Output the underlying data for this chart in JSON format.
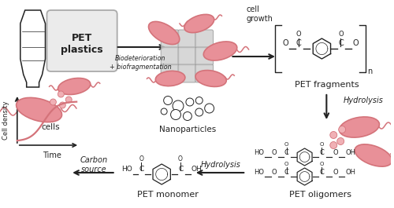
{
  "bg_color": "#ffffff",
  "salmon_color": "#D4737A",
  "salmon_fill": "#E89098",
  "salmon_light": "#F0B0B5",
  "dark_color": "#222222",
  "labels": {
    "cells": "cells",
    "pet_plastics": "PET\nplastics",
    "biodet": "Biodeterioration\n+ biofragmentation",
    "nanoparticles": "Nanoparticles",
    "cell_growth": "cell\ngrowth",
    "pet_fragments": "PET fragments",
    "hydrolysis1": "Hydrolysis",
    "pet_oligomers": "PET oligomers",
    "hydrolysis2": "Hydrolysis",
    "pet_monomer": "PET monomer",
    "carbon_source": "Carbon\nsource",
    "cell_density": "Cell density",
    "time": "Time"
  }
}
